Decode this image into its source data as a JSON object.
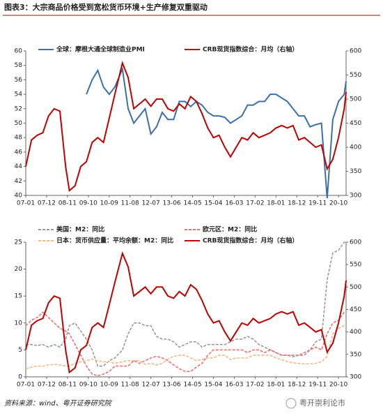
{
  "title": "图表3：大宗商品价格受到宽松货币环境+生产修复双重驱动",
  "source": "资料来源：wind、粤开证券研究院",
  "watermark": "粤开崇利论市",
  "chart_data": [
    {
      "type": "line",
      "x": [
        "07-01",
        "07-04",
        "07-07",
        "07-10",
        "08-01",
        "08-04",
        "08-07",
        "08-10",
        "08-12",
        "09-03",
        "09-06",
        "09-09",
        "09-12",
        "10-03",
        "10-06",
        "10-09",
        "10-12",
        "11-04",
        "11-07",
        "11-10",
        "12-01",
        "12-04",
        "12-07",
        "12-10",
        "13-01",
        "13-04",
        "13-07",
        "13-10",
        "14-01",
        "14-04",
        "14-07",
        "14-10",
        "15-01",
        "15-04",
        "15-07",
        "15-10",
        "16-01",
        "16-04",
        "16-07",
        "16-10",
        "17-01",
        "17-04",
        "17-07",
        "17-10",
        "18-01",
        "18-04",
        "18-07",
        "18-10",
        "19-01",
        "19-04",
        "19-07",
        "19-10",
        "20-01",
        "20-04",
        "20-07",
        "20-10",
        "21-01",
        "21-02"
      ],
      "xlim": [
        "07-01",
        "21-02"
      ],
      "xticks": [
        "07-01",
        "07-12",
        "08-11",
        "09-10",
        "10-09",
        "11-08",
        "12-07",
        "13-06",
        "14-05",
        "15-04",
        "16-03",
        "17-02",
        "18-01",
        "18-12",
        "19-11",
        "20-10"
      ],
      "ylim": [
        40,
        60
      ],
      "yticks": [
        40,
        42,
        44,
        46,
        48,
        50,
        52,
        54,
        56,
        58,
        60
      ],
      "y2lim": [
        300,
        600
      ],
      "y2ticks": [
        300,
        350,
        400,
        450,
        500,
        550,
        600
      ],
      "series": [
        {
          "name": "全球：摩根大通全球制造业PMI",
          "color": "#3c6fa8",
          "style": "solid",
          "values": [
            null,
            null,
            null,
            null,
            null,
            null,
            null,
            null,
            null,
            null,
            null,
            54,
            56,
            57.3,
            55,
            54,
            55,
            57.5,
            52,
            50,
            51,
            52,
            48.5,
            49.5,
            51.5,
            50.5,
            50.5,
            53,
            53,
            52.3,
            53,
            52.5,
            51.5,
            51,
            51,
            50.8,
            50,
            50.5,
            51,
            52.5,
            52.5,
            53,
            53,
            54,
            54,
            53.5,
            53,
            52,
            51,
            51,
            49.5,
            49.8,
            50,
            39.6,
            50.5,
            53,
            54,
            55.8
          ]
        },
        {
          "name": "CRB现货指数综合：月均（右轴）",
          "color": "#c00000",
          "style": "solid",
          "axis": "y2",
          "values": [
            360,
            415,
            425,
            430,
            465,
            480,
            475,
            360,
            310,
            320,
            360,
            370,
            410,
            420,
            410,
            460,
            510,
            575,
            545,
            480,
            490,
            500,
            485,
            500,
            500,
            480,
            475,
            490,
            480,
            505,
            495,
            470,
            440,
            420,
            425,
            400,
            380,
            400,
            420,
            415,
            430,
            420,
            425,
            430,
            440,
            445,
            440,
            445,
            415,
            420,
            410,
            400,
            405,
            355,
            375,
            420,
            480,
            515
          ]
        }
      ]
    },
    {
      "type": "line",
      "x": [
        "07-01",
        "07-04",
        "07-07",
        "07-10",
        "08-01",
        "08-04",
        "08-07",
        "08-10",
        "08-12",
        "09-03",
        "09-06",
        "09-09",
        "09-12",
        "10-03",
        "10-06",
        "10-09",
        "10-12",
        "11-04",
        "11-07",
        "11-10",
        "12-01",
        "12-04",
        "12-07",
        "12-10",
        "13-01",
        "13-04",
        "13-07",
        "13-10",
        "14-01",
        "14-04",
        "14-07",
        "14-10",
        "15-01",
        "15-04",
        "15-07",
        "15-10",
        "16-01",
        "16-04",
        "16-07",
        "16-10",
        "17-01",
        "17-04",
        "17-07",
        "17-10",
        "18-01",
        "18-04",
        "18-07",
        "18-10",
        "19-01",
        "19-04",
        "19-07",
        "19-10",
        "20-01",
        "20-04",
        "20-07",
        "20-10",
        "21-01",
        "21-02"
      ],
      "xlim": [
        "07-01",
        "21-02"
      ],
      "xticks": [
        "07-01",
        "07-12",
        "08-11",
        "09-10",
        "10-09",
        "11-08",
        "12-07",
        "13-06",
        "14-05",
        "15-04",
        "16-03",
        "17-02",
        "18-01",
        "18-12",
        "19-11",
        "20-10"
      ],
      "ylim": [
        0,
        25
      ],
      "yticks": [
        0,
        5,
        10,
        15,
        20,
        25
      ],
      "y2lim": [
        300,
        600
      ],
      "y2ticks": [
        300,
        350,
        400,
        450,
        500,
        550,
        600
      ],
      "series": [
        {
          "name": "美国：M2：同比",
          "color": "#999999",
          "style": "dashed",
          "values": [
            6,
            6,
            5.8,
            6,
            5.5,
            6,
            5.5,
            7,
            9.5,
            10,
            8.5,
            7,
            5,
            2,
            2,
            3,
            3.5,
            5,
            8,
            10,
            10,
            9.5,
            9.5,
            7.5,
            7,
            7,
            6.5,
            5.5,
            6,
            6.5,
            6.5,
            5.5,
            6,
            6,
            6,
            6,
            6.5,
            7,
            7,
            7.5,
            7,
            6,
            5.5,
            5,
            4.5,
            4,
            4,
            3.7,
            4,
            4,
            5,
            6.5,
            7,
            18,
            23,
            23.5,
            25,
            25
          ]
        },
        {
          "name": "欧元区：M2：同比",
          "color": "#f07070",
          "style": "dashed",
          "values": [
            9.5,
            10.5,
            11,
            12,
            11,
            10,
            9,
            8.5,
            8,
            6,
            4,
            2,
            0.5,
            0.2,
            0.5,
            1,
            2,
            2,
            2,
            3,
            2.5,
            3,
            3.5,
            3.8,
            3.5,
            3,
            2.2,
            1.5,
            1,
            1,
            1.8,
            2.5,
            4,
            5,
            5,
            5,
            5,
            5,
            5,
            4.5,
            5,
            5,
            4.5,
            5,
            4.5,
            4,
            4,
            4,
            4,
            4.5,
            5,
            5.5,
            5,
            8,
            10,
            10.5,
            12,
            12
          ]
        },
        {
          "name": "日本：货币供应量：平均余额：M2：同比",
          "color": "#f8b888",
          "style": "dashed",
          "values": [
            1.5,
            1.8,
            2,
            2,
            2.2,
            2.3,
            2.2,
            2,
            2,
            2.5,
            2.8,
            3,
            3.3,
            3,
            2.8,
            2.8,
            2.5,
            2.8,
            3,
            3,
            3,
            2.3,
            2.5,
            2.2,
            2.5,
            3.3,
            3.8,
            4,
            4,
            3.5,
            3,
            3.2,
            3.5,
            3.5,
            4,
            4,
            3.2,
            3.5,
            3.5,
            3.5,
            4,
            4,
            4,
            4,
            3.5,
            3.2,
            2.8,
            2.6,
            2.5,
            2.4,
            2.4,
            2.5,
            2.8,
            3.8,
            8,
            9,
            9.5,
            9.5
          ]
        },
        {
          "name": "CRB现货指数综合：月均（右轴）",
          "color": "#c00000",
          "style": "solid",
          "axis": "y2",
          "values": [
            360,
            415,
            425,
            430,
            465,
            480,
            475,
            360,
            310,
            320,
            360,
            370,
            410,
            420,
            410,
            460,
            510,
            575,
            545,
            480,
            490,
            500,
            485,
            500,
            500,
            480,
            475,
            490,
            480,
            505,
            495,
            470,
            440,
            420,
            425,
            400,
            380,
            400,
            420,
            415,
            430,
            420,
            425,
            430,
            440,
            445,
            440,
            445,
            415,
            420,
            410,
            400,
            405,
            355,
            375,
            420,
            480,
            515
          ]
        }
      ]
    }
  ]
}
